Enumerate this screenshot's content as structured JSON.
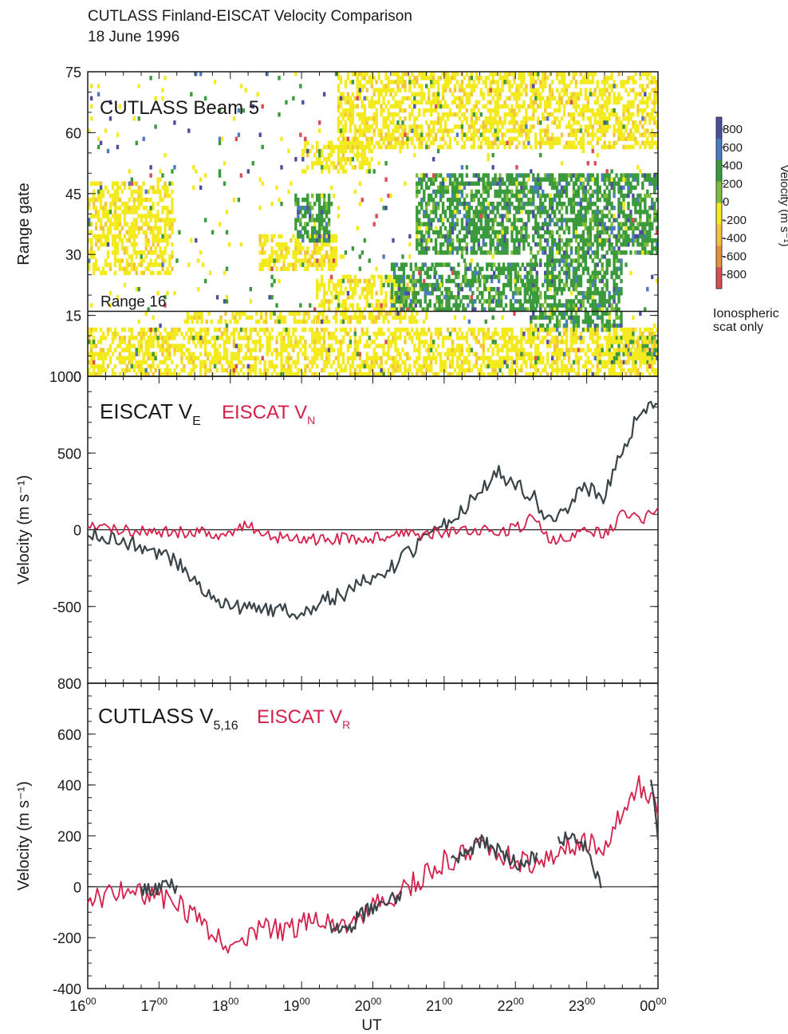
{
  "figure": {
    "title": "CUTLASS Finland-EISCAT Velocity Comparison",
    "subtitle": "18 June 1996"
  },
  "colors": {
    "eiscat_ve": "#3a4348",
    "eiscat_vn": "#d4204a",
    "cutlass_v": "#3a4348",
    "eiscat_vr": "#d4204a",
    "scale": [
      "#4b4f9e",
      "#4b7bc0",
      "#3b9a3c",
      "#7dbd3a",
      "#f3ea1f",
      "#f2c43a",
      "#e8903a",
      "#d94d57"
    ]
  },
  "chart_data": [
    {
      "type": "heatmap",
      "label": "CUTLASS Beam 5",
      "ylabel": "Range gate",
      "yticks": [
        0,
        15,
        30,
        45,
        60,
        75
      ],
      "ylim": [
        0,
        75
      ],
      "xlim": [
        16,
        24
      ],
      "annotation": "Range 16",
      "reference_gate": 16,
      "colorbar": {
        "title": "Velocity (m s⁻¹)",
        "labels": [
          "800",
          "600",
          "400",
          "200",
          "0",
          "-200",
          "-400",
          "-600",
          "-800"
        ],
        "note": [
          "Ionospheric",
          "scat only"
        ]
      },
      "regions": [
        {
          "type": "yellow",
          "x": [
            19.2,
            20.75
          ],
          "y": [
            13,
            16
          ]
        },
        {
          "type": "yellow",
          "x": [
            17.35,
            19.35
          ],
          "y": [
            13,
            15.5
          ]
        },
        {
          "type": "yellow",
          "x": [
            19.2,
            20.6
          ],
          "y": [
            16,
            25
          ]
        },
        {
          "type": "green",
          "x": [
            20.25,
            22.3
          ],
          "y": [
            16,
            28
          ]
        },
        {
          "type": "green",
          "x": [
            22.2,
            23.5
          ],
          "y": [
            11,
            30
          ]
        },
        {
          "type": "green",
          "x": [
            23.3,
            24.0
          ],
          "y": [
            3,
            10
          ]
        },
        {
          "type": "yellow",
          "x": [
            18.4,
            19.5
          ],
          "y": [
            26,
            35
          ]
        },
        {
          "type": "green",
          "x": [
            18.9,
            19.4
          ],
          "y": [
            33,
            45
          ]
        },
        {
          "type": "yellow",
          "x": [
            16.0,
            17.2
          ],
          "y": [
            25,
            48
          ]
        },
        {
          "type": "yellow",
          "x": [
            19.0,
            20.0
          ],
          "y": [
            50,
            58
          ]
        },
        {
          "type": "yellow",
          "x": [
            19.5,
            24.0
          ],
          "y": [
            56,
            75
          ]
        },
        {
          "type": "green",
          "x": [
            20.6,
            24.0
          ],
          "y": [
            30,
            50
          ]
        },
        {
          "type": "yellow",
          "x": [
            16.0,
            24.0
          ],
          "y": [
            0,
            12
          ]
        },
        {
          "type": "mixed",
          "x": [
            16.0,
            24.0
          ],
          "y": [
            0,
            75
          ]
        }
      ]
    },
    {
      "type": "line",
      "ylabel": "Velocity (m s⁻¹)",
      "ylim": [
        -1000,
        1000
      ],
      "yticks": [
        -1000,
        -500,
        0,
        500,
        1000
      ],
      "ytick_labels": [
        "",
        "-500",
        "0",
        "500",
        "1000"
      ],
      "xlim": [
        16,
        24
      ],
      "legend": [
        {
          "text": "EISCAT V",
          "sub": "E"
        },
        {
          "text": "EISCAT V",
          "sub": "N"
        }
      ],
      "series": [
        {
          "key": "ve",
          "x": [
            16.0,
            16.25,
            16.5,
            16.75,
            17.0,
            17.25,
            17.5,
            17.75,
            18.0,
            18.25,
            18.5,
            18.75,
            19.0,
            19.25,
            19.5,
            19.75,
            20.0,
            20.25,
            20.5,
            20.75,
            21.0,
            21.25,
            21.5,
            21.75,
            22.0,
            22.25,
            22.5,
            22.75,
            23.0,
            23.25,
            23.5,
            23.75,
            24.0
          ],
          "values": [
            -20,
            -50,
            -80,
            -110,
            -150,
            -200,
            -330,
            -430,
            -500,
            -520,
            -510,
            -520,
            -540,
            -470,
            -430,
            -380,
            -310,
            -250,
            -160,
            -60,
            30,
            130,
            250,
            380,
            300,
            220,
            40,
            170,
            270,
            220,
            520,
            760,
            800
          ]
        },
        {
          "key": "vn",
          "x": [
            16.0,
            16.5,
            17.0,
            17.5,
            18.0,
            18.25,
            18.5,
            19.0,
            19.5,
            20.0,
            20.5,
            21.0,
            21.5,
            22.0,
            22.25,
            22.5,
            22.75,
            23.0,
            23.25,
            23.5,
            23.75,
            24.0
          ],
          "values": [
            20,
            0,
            -10,
            -20,
            -30,
            40,
            -40,
            -60,
            -60,
            -50,
            -30,
            -20,
            -10,
            0,
            80,
            -80,
            -40,
            0,
            -30,
            100,
            60,
            150
          ]
        }
      ]
    },
    {
      "type": "line",
      "ylabel": "Velocity (m s⁻¹)",
      "ylim": [
        -400,
        800
      ],
      "yticks": [
        -400,
        -200,
        0,
        200,
        400,
        600,
        800
      ],
      "xlim": [
        16,
        24
      ],
      "xlabel": "UT",
      "xtick_values": [
        16,
        17,
        18,
        19,
        20,
        21,
        22,
        23,
        24
      ],
      "xtick_labels": [
        {
          "h": "16",
          "m": "00"
        },
        {
          "h": "17",
          "m": "00"
        },
        {
          "h": "18",
          "m": "00"
        },
        {
          "h": "19",
          "m": "00"
        },
        {
          "h": "20",
          "m": "00"
        },
        {
          "h": "21",
          "m": "00"
        },
        {
          "h": "22",
          "m": "00"
        },
        {
          "h": "23",
          "m": "00"
        },
        {
          "h": "00",
          "m": "00"
        }
      ],
      "legend": [
        {
          "text": "CUTLASS V",
          "sub": "5,16"
        },
        {
          "text": "EISCAT V",
          "sub": "R"
        }
      ],
      "series": [
        {
          "key": "vr",
          "x": [
            16.0,
            16.25,
            16.5,
            16.75,
            17.0,
            17.25,
            17.5,
            17.75,
            18.0,
            18.25,
            18.5,
            18.75,
            19.0,
            19.25,
            19.5,
            19.75,
            20.0,
            20.25,
            20.5,
            20.75,
            21.0,
            21.25,
            21.5,
            21.75,
            22.0,
            22.25,
            22.5,
            22.75,
            23.0,
            23.25,
            23.5,
            23.75,
            24.0
          ],
          "values": [
            -60,
            -40,
            -20,
            -30,
            -40,
            -60,
            -120,
            -180,
            -230,
            -200,
            -160,
            -170,
            -150,
            -110,
            -170,
            -120,
            -80,
            -50,
            0,
            50,
            100,
            120,
            160,
            130,
            110,
            70,
            130,
            160,
            180,
            160,
            300,
            400,
            300
          ]
        },
        {
          "key": "cv",
          "segments": [
            {
              "x": [
                16.75,
                17.0,
                17.25
              ],
              "values": [
                -10,
                0,
                0
              ]
            },
            {
              "x": [
                19.4,
                19.6,
                19.8,
                20.0,
                20.2,
                20.4
              ],
              "values": [
                -150,
                -180,
                -120,
                -80,
                -60,
                -40
              ]
            },
            {
              "x": [
                21.1,
                21.3,
                21.5,
                21.7,
                21.9,
                22.1,
                22.3
              ],
              "values": [
                100,
                120,
                180,
                150,
                110,
                90,
                120
              ]
            },
            {
              "x": [
                22.6,
                22.8,
                23.0,
                23.2
              ],
              "values": [
                200,
                180,
                160,
                0
              ]
            },
            {
              "x": [
                23.9,
                24.0
              ],
              "values": [
                420,
                200
              ]
            }
          ]
        }
      ]
    }
  ]
}
